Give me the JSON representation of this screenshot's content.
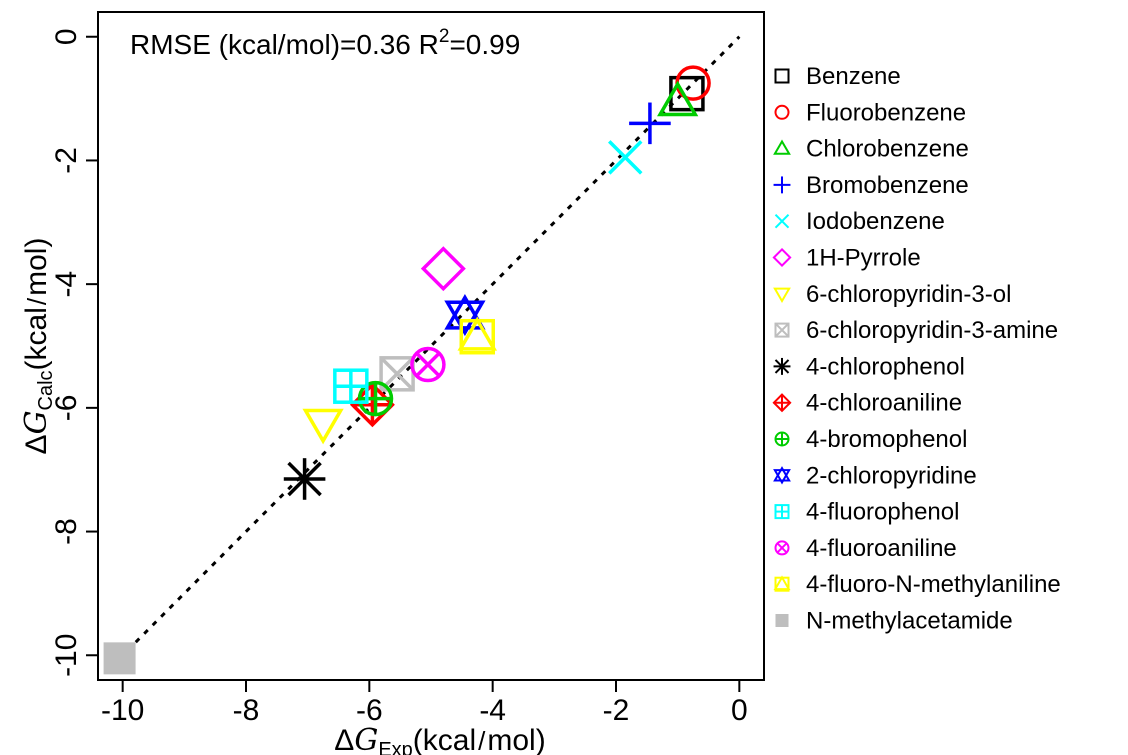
{
  "chart_data": {
    "type": "scatter",
    "annotation": "RMSE (kcal/mol)=0.36 R²=0.99",
    "xlabel": "ΔG Exp(kcal/mol)",
    "ylabel": "ΔG Calc(kcal/mol)",
    "xlabel_parts": [
      "Δ",
      "G",
      "Exp",
      "(kcal",
      "/",
      "mol)"
    ],
    "ylabel_parts": [
      "Δ",
      "G",
      "Calc",
      "(kcal",
      "/",
      "mol)"
    ],
    "xlim": [
      -10.4,
      0.4
    ],
    "ylim": [
      -10.4,
      0.4
    ],
    "xticks": [
      -10,
      -8,
      -6,
      -4,
      -2,
      0
    ],
    "yticks": [
      -10,
      -8,
      -6,
      -4,
      -2,
      0
    ],
    "xtick_labels": [
      "-10",
      "-8",
      "-6",
      "-4",
      "-2",
      "0"
    ],
    "ytick_labels": [
      "-10",
      "-8",
      "-6",
      "-4",
      "-2",
      "0"
    ],
    "reference_line": {
      "style": "dotted",
      "from": [
        -10.2,
        -10.2
      ],
      "to": [
        0,
        0
      ]
    },
    "grid": false,
    "legend_position": "right",
    "series": [
      {
        "name": "Benzene",
        "marker": "square",
        "color": "#000000",
        "x": -0.85,
        "y": -0.92
      },
      {
        "name": "Fluorobenzene",
        "marker": "circle",
        "color": "#ff0000",
        "x": -0.75,
        "y": -0.75
      },
      {
        "name": "Chlorobenzene",
        "marker": "triangle-up",
        "color": "#00cc00",
        "x": -1.0,
        "y": -1.05
      },
      {
        "name": "Bromobenzene",
        "marker": "plus",
        "color": "#0000ff",
        "x": -1.45,
        "y": -1.4
      },
      {
        "name": "Iodobenzene",
        "marker": "cross",
        "color": "#00ffff",
        "x": -1.85,
        "y": -1.95
      },
      {
        "name": "1H-Pyrrole",
        "marker": "diamond",
        "color": "#ff00ff",
        "x": -4.8,
        "y": -3.75
      },
      {
        "name": "6-chloropyridin-3-ol",
        "marker": "triangle-down",
        "color": "#ffff00",
        "x": -6.75,
        "y": -6.25
      },
      {
        "name": "6-chloropyridin-3-amine",
        "marker": "square-cross",
        "color": "#bebebe",
        "x": -5.55,
        "y": -5.45
      },
      {
        "name": "4-chlorophenol",
        "marker": "asterisk",
        "color": "#000000",
        "x": -7.05,
        "y": -7.15
      },
      {
        "name": "4-chloroaniline",
        "marker": "diamond-plus",
        "color": "#ff0000",
        "x": -5.95,
        "y": -5.95
      },
      {
        "name": "4-bromophenol",
        "marker": "circle-plus",
        "color": "#00cc00",
        "x": -5.9,
        "y": -5.85
      },
      {
        "name": "2-chloropyridine",
        "marker": "star-of-david",
        "color": "#0000ff",
        "x": -4.45,
        "y": -4.5
      },
      {
        "name": "4-fluorophenol",
        "marker": "square-plus",
        "color": "#00ffff",
        "x": -6.3,
        "y": -5.65
      },
      {
        "name": "4-fluoroaniline",
        "marker": "circle-cross",
        "color": "#ff00ff",
        "x": -5.05,
        "y": -5.3
      },
      {
        "name": "4-fluoro-N-methylaniline",
        "marker": "square-triangle",
        "color": "#ffff00",
        "x": -4.25,
        "y": -4.85
      },
      {
        "name": "N-methylacetamide",
        "marker": "filled-square",
        "color": "#bebebe",
        "x": -10.05,
        "y": -10.05
      }
    ]
  }
}
